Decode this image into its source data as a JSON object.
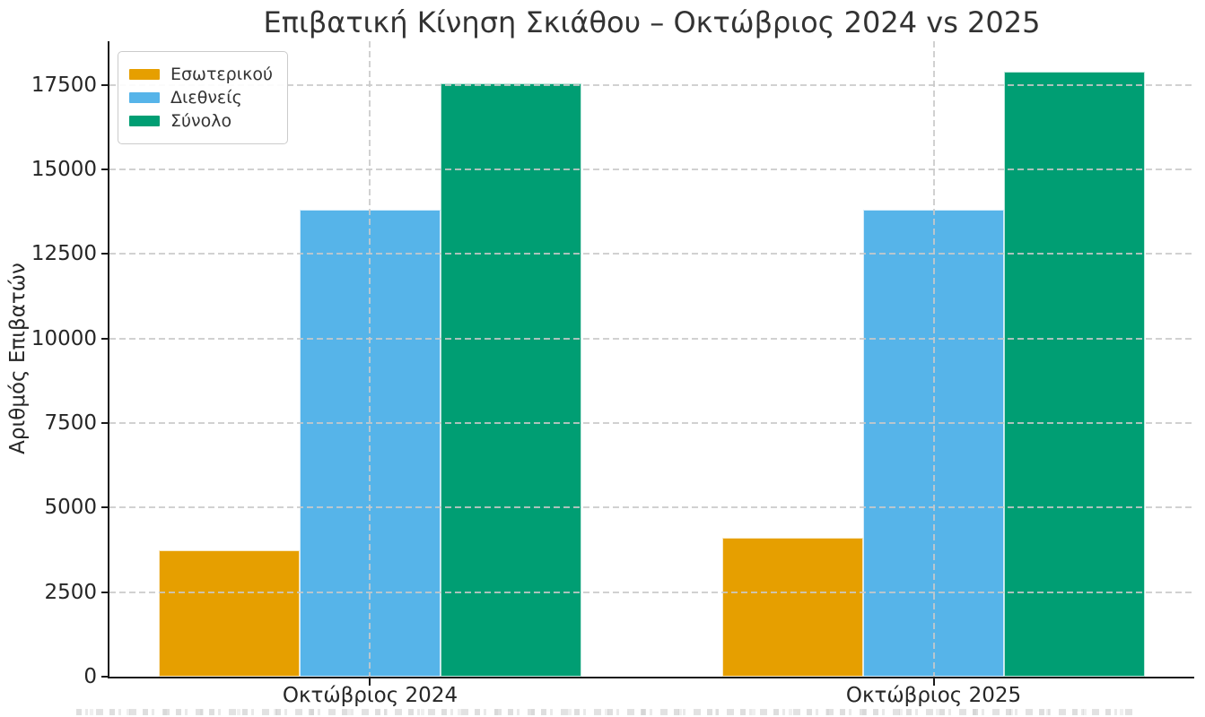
{
  "figure": {
    "background": "#ffffff"
  },
  "chart_data": {
    "type": "bar",
    "title": "Επιβατική Κίνηση Σκιάθου – Οκτώβριος 2024 vs 2025",
    "xlabel": "",
    "ylabel": "Αριθμός Επιβατών",
    "categories": [
      "Οκτώβριος 2024",
      "Οκτώβριος 2025"
    ],
    "series": [
      {
        "name": "Εσωτερικού",
        "color": "#E69F00",
        "values": [
          3750,
          4100
        ]
      },
      {
        "name": "Διεθνείς",
        "color": "#56B4E9",
        "values": [
          13800,
          13800
        ]
      },
      {
        "name": "Σύνολο",
        "color": "#009E73",
        "values": [
          17550,
          17900
        ]
      }
    ],
    "yticks": [
      0,
      2500,
      5000,
      7500,
      10000,
      12500,
      15000,
      17500
    ],
    "ylim": [
      0,
      18795
    ],
    "grid": true,
    "grid_style": "dashed",
    "legend_position": "upper-left",
    "bar_width_data_units": 0.25
  },
  "colors": {
    "grid": "#c9c9c9",
    "axis": "#1a1a1a",
    "tick_label": "#262626",
    "title": "#333333",
    "legend_border": "#cbcbcb",
    "legend_text": "#333333"
  }
}
